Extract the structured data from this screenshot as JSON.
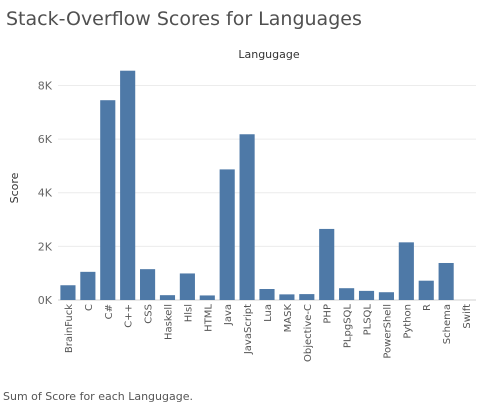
{
  "page": {
    "title": "Stack-Overflow Scores for Languages",
    "caption": "Sum of Score for each Langugage."
  },
  "chart_data": {
    "type": "bar",
    "title": "Stack-Overflow Scores for Languages",
    "xlabel": "Langugage",
    "ylabel": "Score",
    "categories": [
      "BrainFuck",
      "C",
      "C#",
      "C++",
      "CSS",
      "Haskell",
      "Hlsl",
      "HTML",
      "Java",
      "JavaScript",
      "Lua",
      "MASK",
      "Objective-C",
      "PHP",
      "PLpgSQL",
      "PLSQL",
      "PowerShell",
      "Python",
      "R",
      "Schema",
      "Swift"
    ],
    "series": [
      {
        "values": [
          550,
          1050,
          7450,
          8550,
          1150,
          180,
          990,
          170,
          4870,
          6180,
          410,
          210,
          220,
          2650,
          440,
          340,
          290,
          2150,
          720,
          1380,
          0
        ]
      }
    ],
    "ylim": [
      0,
      8800
    ],
    "yticks": [
      0,
      2000,
      4000,
      6000,
      8000
    ],
    "ytick_labels": [
      "0K",
      "2K",
      "4K",
      "6K",
      "8K"
    ],
    "grid": true,
    "legend": "none",
    "bar_color": "#4e79a7"
  }
}
